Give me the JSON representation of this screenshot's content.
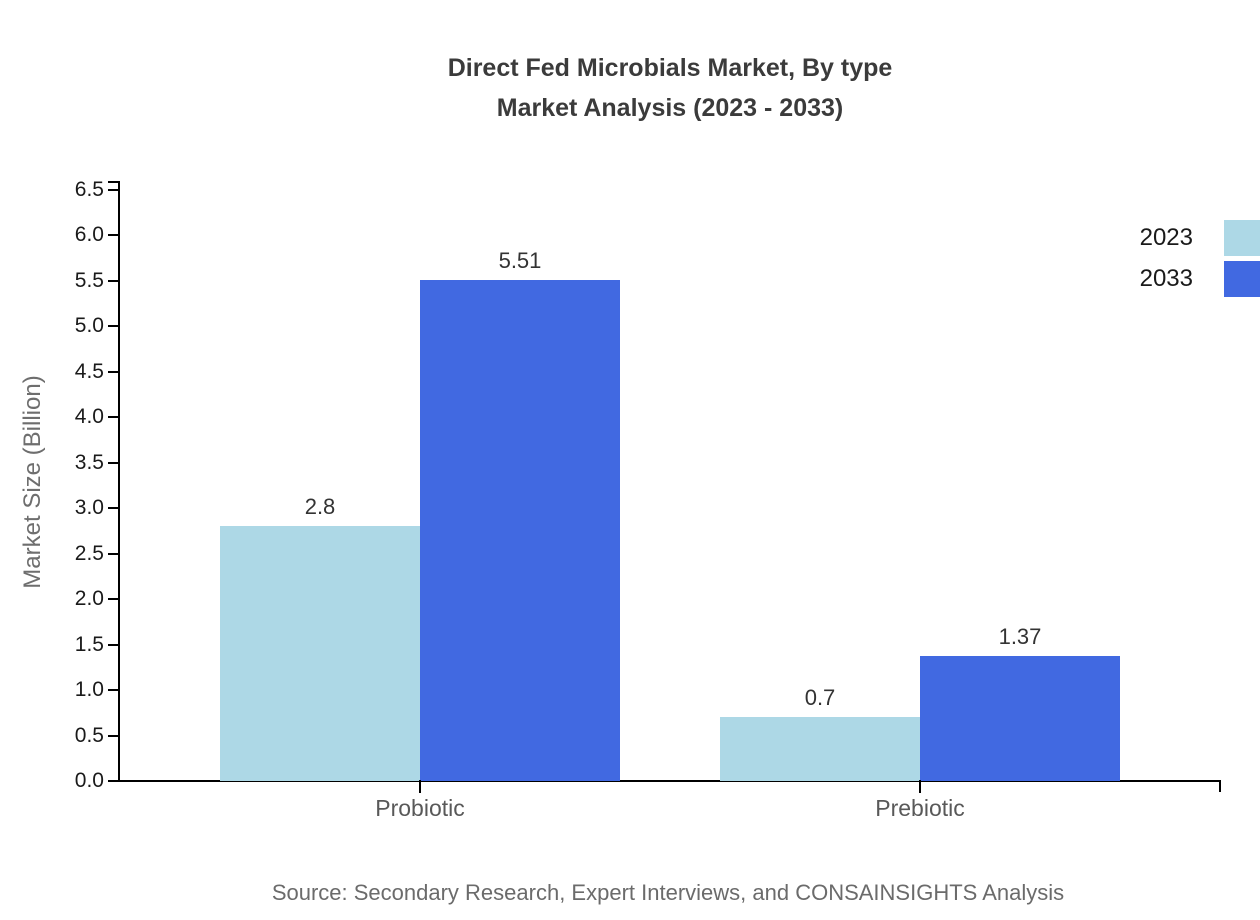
{
  "title": {
    "line1": "Direct Fed Microbials Market, By type",
    "line2": "Market Analysis (2023 - 2033)"
  },
  "source": "Source: Secondary Research, Expert Interviews, and CONSAINSIGHTS Analysis",
  "chart_data": {
    "type": "bar",
    "categories": [
      "Probiotic",
      "Prebiotic"
    ],
    "series": [
      {
        "name": "2023",
        "color": "#ADD8E6",
        "values": [
          2.8,
          0.7
        ]
      },
      {
        "name": "2033",
        "color": "#4169E1",
        "values": [
          5.51,
          1.37
        ]
      }
    ],
    "title": "Direct Fed Microbials Market, By type Market Analysis (2023 - 2033)",
    "xlabel": "",
    "ylabel": "Market Size (Billion)",
    "ylim": [
      0,
      6.5
    ],
    "ytick_step": 0.5,
    "grid": false,
    "legend_position": "right",
    "bar_value_labels": [
      "2.8",
      "5.51",
      "0.7",
      "1.37"
    ]
  },
  "colors": {
    "axis": "#000000",
    "title_text": "#3b3b3b",
    "tick_label": "#1a1a1a",
    "category_label": "#595959",
    "value_label": "#333333",
    "axis_label": "#6e6e6e",
    "source_text": "#6b6b6b"
  }
}
